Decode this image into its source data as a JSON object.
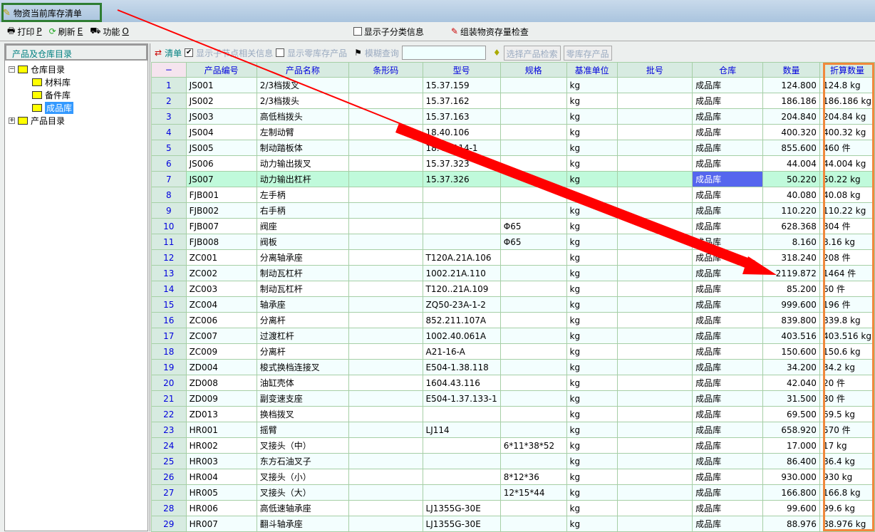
{
  "window": {
    "title": "物资当前库存清单"
  },
  "toolbar": {
    "print": "打印",
    "print_key": "P",
    "refresh": "刷新",
    "refresh_key": "E",
    "func": "功能",
    "func_key": "O",
    "show_sub": "显示子分类信息",
    "assembly_check": "组装物资存量检查"
  },
  "left": {
    "header": "产品及仓库目录",
    "tree": {
      "warehouse_root": "仓库目录",
      "materials": "材料库",
      "spares": "备件库",
      "finished": "成品库",
      "product_root": "产品目录"
    }
  },
  "filter": {
    "list": "清单",
    "show_child": "显示子节点相关信息",
    "show_child_checked": true,
    "show_zero": "显示零库存产品",
    "show_zero_checked": false,
    "fuzzy": "模糊查询",
    "fuzzy_value": "",
    "select_search": "选择产品检索",
    "zero_stock": "零库存产品"
  },
  "table": {
    "columns": [
      "−",
      "产品编号",
      "产品名称",
      "条形码",
      "型号",
      "规格",
      "基准单位",
      "批号",
      "仓库",
      "数量",
      "折算数量"
    ],
    "selected_row": 7,
    "rows": [
      [
        "1",
        "JS001",
        "2/3档拨叉",
        "",
        "15.37.159",
        "",
        "kg",
        "",
        "成品库",
        "124.800",
        "124.8 kg"
      ],
      [
        "2",
        "JS002",
        "2/3档拨头",
        "",
        "15.37.162",
        "",
        "kg",
        "",
        "成品库",
        "186.186",
        "186.186 kg"
      ],
      [
        "3",
        "JS003",
        "高低档拨头",
        "",
        "15.37.163",
        "",
        "kg",
        "",
        "成品库",
        "204.840",
        "204.84 kg"
      ],
      [
        "4",
        "JS004",
        "左制动臂",
        "",
        "18.40.106",
        "",
        "kg",
        "",
        "成品库",
        "400.320",
        "400.32 kg"
      ],
      [
        "5",
        "JS005",
        "制动踏板体",
        "",
        "18.40.114-1",
        "",
        "kg",
        "",
        "成品库",
        "855.600",
        "460 件"
      ],
      [
        "6",
        "JS006",
        "动力输出拨叉",
        "",
        "15.37.323",
        "",
        "kg",
        "",
        "成品库",
        "44.004",
        "44.004 kg"
      ],
      [
        "7",
        "JS007",
        "动力输出杠杆",
        "",
        "15.37.326",
        "",
        "kg",
        "",
        "成品库",
        "50.220",
        "50.22 kg"
      ],
      [
        "8",
        "FJB001",
        "左手柄",
        "",
        "",
        "",
        "kg",
        "",
        "成品库",
        "40.080",
        "40.08 kg"
      ],
      [
        "9",
        "FJB002",
        "右手柄",
        "",
        "",
        "",
        "kg",
        "",
        "成品库",
        "110.220",
        "110.22 kg"
      ],
      [
        "10",
        "FJB007",
        "阀座",
        "",
        "",
        "Φ65",
        "kg",
        "",
        "成品库",
        "628.368",
        "304 件"
      ],
      [
        "11",
        "FJB008",
        "阀板",
        "",
        "",
        "Φ65",
        "kg",
        "",
        "成品库",
        "8.160",
        "8.16 kg"
      ],
      [
        "12",
        "ZC001",
        "分离轴承座",
        "",
        "T120A.21A.106",
        "",
        "kg",
        "",
        "成品库",
        "318.240",
        "208 件"
      ],
      [
        "13",
        "ZC002",
        "制动瓦杠杆",
        "",
        "1002.21A.110",
        "",
        "kg",
        "",
        "成品库",
        "2119.872",
        "1464 件"
      ],
      [
        "14",
        "ZC003",
        "制动瓦杠杆",
        "",
        "T120..21A.109",
        "",
        "kg",
        "",
        "成品库",
        "85.200",
        "60 件"
      ],
      [
        "15",
        "ZC004",
        "轴承座",
        "",
        "ZQ50-23A-1-2",
        "",
        "kg",
        "",
        "成品库",
        "999.600",
        "196 件"
      ],
      [
        "16",
        "ZC006",
        "分离杆",
        "",
        "852.211.107A",
        "",
        "kg",
        "",
        "成品库",
        "839.800",
        "839.8 kg"
      ],
      [
        "17",
        "ZC007",
        "过渡杠杆",
        "",
        "1002.40.061A",
        "",
        "kg",
        "",
        "成品库",
        "403.516",
        "403.516 kg"
      ],
      [
        "18",
        "ZC009",
        "分离杆",
        "",
        "A21-16-A",
        "",
        "kg",
        "",
        "成品库",
        "150.600",
        "150.6 kg"
      ],
      [
        "19",
        "ZD004",
        "梭式换档连接叉",
        "",
        "E504-1.38.118",
        "",
        "kg",
        "",
        "成品库",
        "34.200",
        "34.2 kg"
      ],
      [
        "20",
        "ZD008",
        "油缸壳体",
        "",
        "1604.43.116",
        "",
        "kg",
        "",
        "成品库",
        "42.040",
        "20 件"
      ],
      [
        "21",
        "ZD009",
        "副变速支座",
        "",
        "E504-1.37.133-1",
        "",
        "kg",
        "",
        "成品库",
        "31.500",
        "30 件"
      ],
      [
        "22",
        "ZD013",
        "换档拨叉",
        "",
        "",
        "",
        "kg",
        "",
        "成品库",
        "69.500",
        "69.5 kg"
      ],
      [
        "23",
        "HR001",
        "摇臂",
        "",
        "LJ114",
        "",
        "kg",
        "",
        "成品库",
        "658.920",
        "570 件"
      ],
      [
        "24",
        "HR002",
        "叉接头（中）",
        "",
        "",
        "6*11*38*52",
        "kg",
        "",
        "成品库",
        "17.000",
        "17 kg"
      ],
      [
        "25",
        "HR003",
        "东方石油叉子",
        "",
        "",
        "",
        "kg",
        "",
        "成品库",
        "86.400",
        "86.4 kg"
      ],
      [
        "26",
        "HR004",
        "叉接头（小）",
        "",
        "",
        "8*12*36",
        "kg",
        "",
        "成品库",
        "930.000",
        "930 kg"
      ],
      [
        "27",
        "HR005",
        "叉接头（大）",
        "",
        "",
        "12*15*44",
        "kg",
        "",
        "成品库",
        "166.800",
        "166.8 kg"
      ],
      [
        "28",
        "HR006",
        "高低速轴承座",
        "",
        "LJ1355G-30E",
        "",
        "kg",
        "",
        "成品库",
        "99.600",
        "99.6 kg"
      ],
      [
        "29",
        "HR007",
        "翻斗轴承座",
        "",
        "LJ1355G-30E",
        "",
        "kg",
        "",
        "成品库",
        "88.976",
        "88.976 kg"
      ]
    ]
  },
  "annotations": {
    "arrow_color": "#ff0000",
    "title_box_color": "#2e7d32",
    "column_box_color": "#f0883c"
  }
}
